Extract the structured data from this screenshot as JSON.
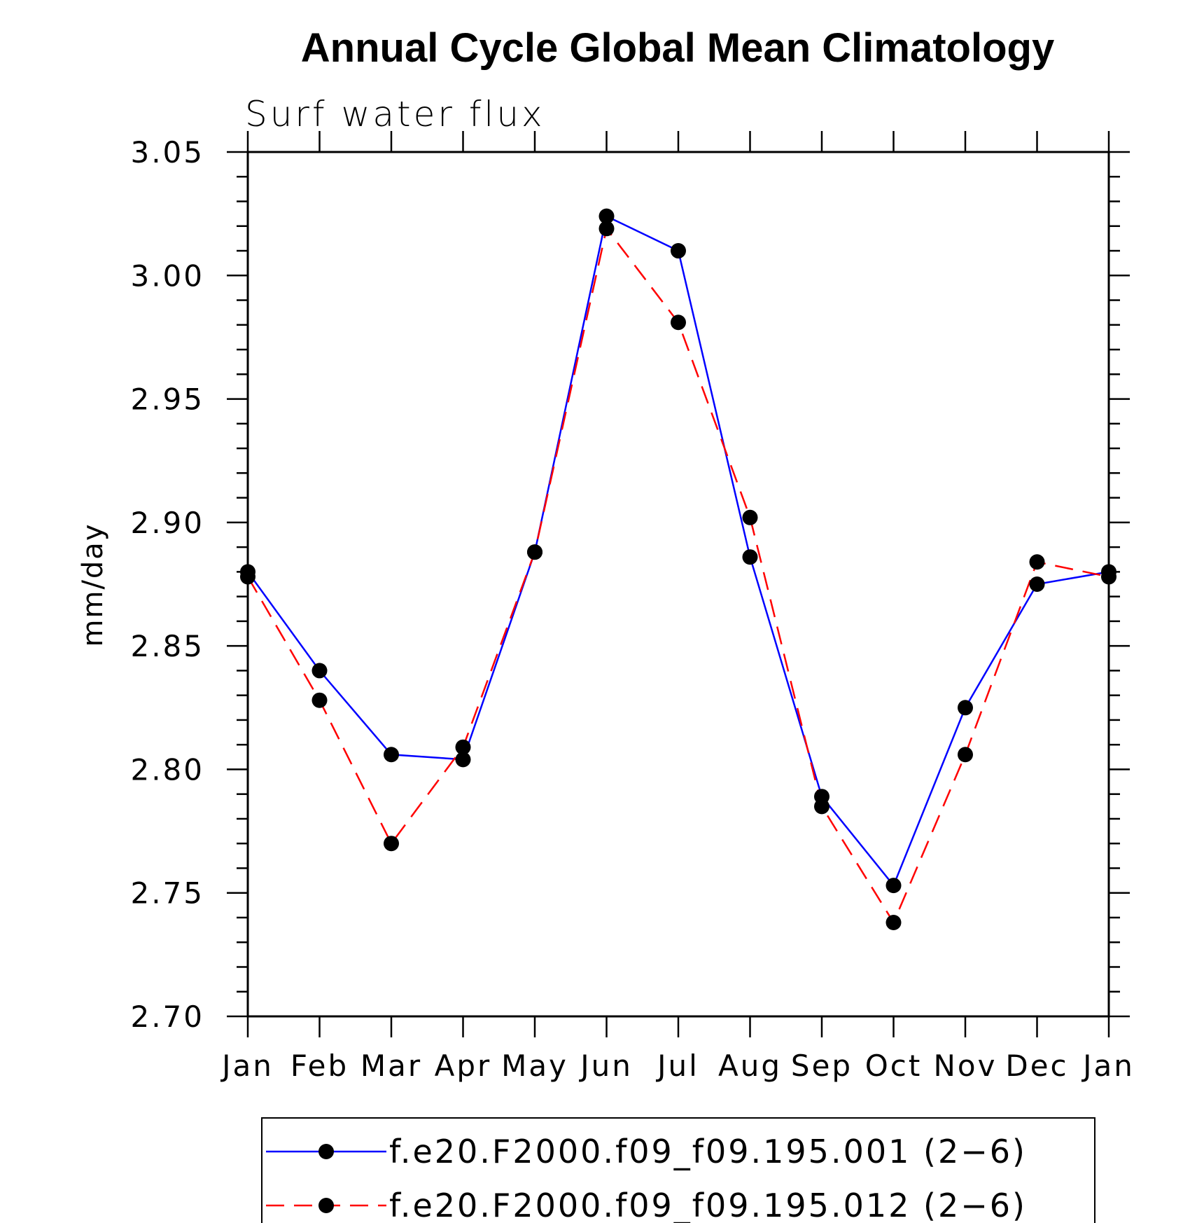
{
  "chart_data": {
    "type": "line",
    "title": "Annual Cycle Global Mean Climatology",
    "subtitle": "Surf water flux",
    "xlabel": "",
    "ylabel": "mm/day",
    "categories": [
      "Jan",
      "Feb",
      "Mar",
      "Apr",
      "May",
      "Jun",
      "Jul",
      "Aug",
      "Sep",
      "Oct",
      "Nov",
      "Dec",
      "Jan"
    ],
    "ylim": [
      2.7,
      3.05
    ],
    "yticks": [
      "2.70",
      "2.75",
      "2.80",
      "2.85",
      "2.90",
      "2.95",
      "3.00",
      "3.05"
    ],
    "grid": false,
    "legend_position": "bottom",
    "series": [
      {
        "name": "f.e20.F2000.f09_f09.195.001 (2−6)",
        "color": "#0000ff",
        "line_style": "solid",
        "marker": "filled-circle",
        "values": [
          2.88,
          2.84,
          2.806,
          2.804,
          2.888,
          3.024,
          3.01,
          2.886,
          2.789,
          2.753,
          2.825,
          2.875,
          2.88
        ]
      },
      {
        "name": "f.e20.F2000.f09_f09.195.012 (2−6)",
        "color": "#ff0000",
        "line_style": "dashed",
        "marker": "filled-circle",
        "values": [
          2.878,
          2.828,
          2.77,
          2.809,
          2.888,
          3.019,
          2.981,
          2.902,
          2.785,
          2.738,
          2.806,
          2.884,
          2.878
        ]
      }
    ]
  }
}
